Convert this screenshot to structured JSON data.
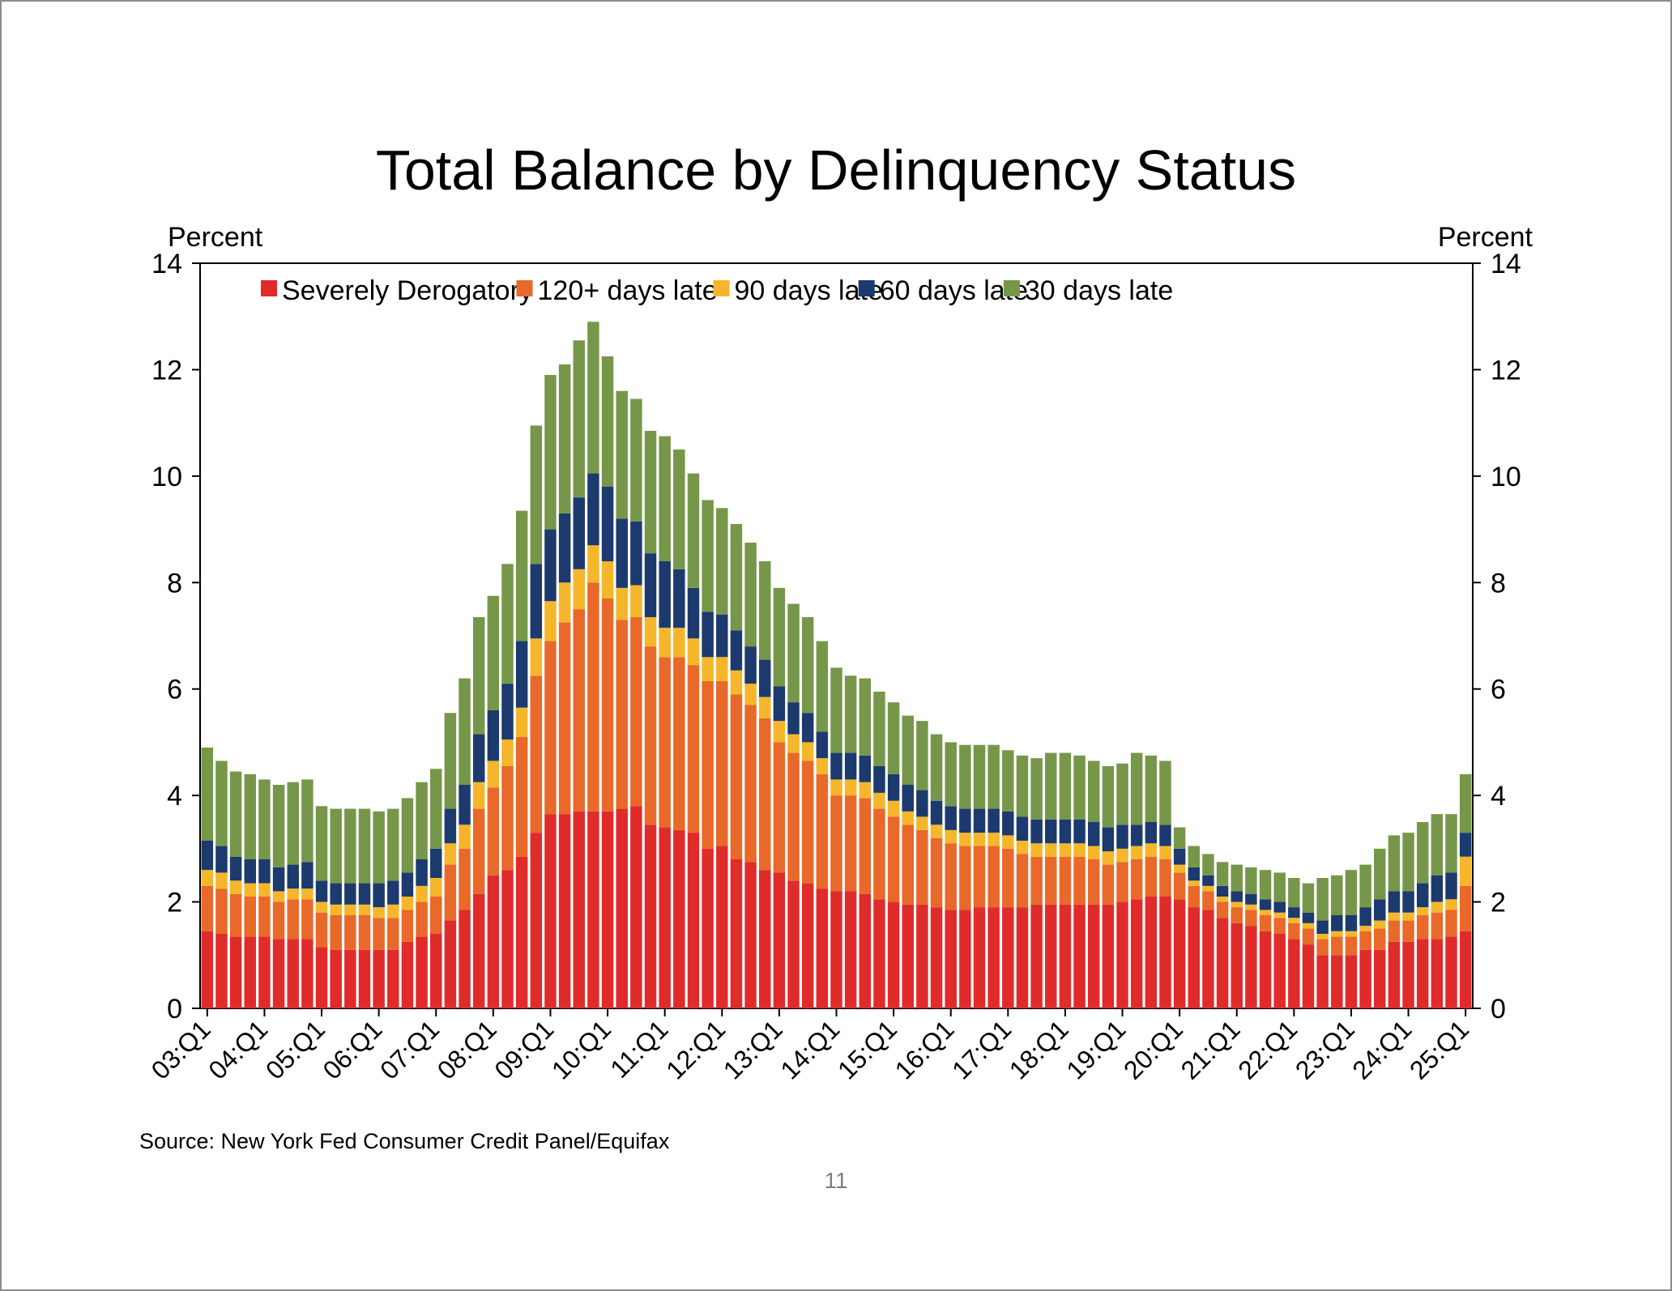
{
  "page_number": "11",
  "chart_data": {
    "type": "bar",
    "stacked": true,
    "title": "Total Balance by Delinquency Status",
    "ylabel_left": "Percent",
    "ylabel_right": "Percent",
    "ylim": [
      0,
      14
    ],
    "yticks": [
      0,
      2,
      4,
      6,
      8,
      10,
      12,
      14
    ],
    "grid": false,
    "legend_position": "top",
    "source": "Source: New York Fed Consumer Credit Panel/Equifax",
    "x_tick_labels": [
      "03:Q1",
      "04:Q1",
      "05:Q1",
      "06:Q1",
      "07:Q1",
      "08:Q1",
      "09:Q1",
      "10:Q1",
      "11:Q1",
      "12:Q1",
      "13:Q1",
      "14:Q1",
      "15:Q1",
      "16:Q1",
      "17:Q1",
      "18:Q1",
      "19:Q1",
      "20:Q1",
      "21:Q1",
      "22:Q1",
      "23:Q1",
      "24:Q1",
      "25:Q1"
    ],
    "x_tick_every": 4,
    "quarters_count": 89,
    "series": [
      {
        "name": "Severely Derogatory",
        "color": "#e02b2b",
        "values": [
          1.45,
          1.4,
          1.35,
          1.35,
          1.35,
          1.3,
          1.3,
          1.3,
          1.15,
          1.1,
          1.1,
          1.1,
          1.1,
          1.1,
          1.25,
          1.35,
          1.4,
          1.65,
          1.85,
          2.15,
          2.5,
          2.6,
          2.85,
          3.3,
          3.65,
          3.65,
          3.7,
          3.7,
          3.7,
          3.75,
          3.8,
          3.45,
          3.4,
          3.35,
          3.3,
          3.0,
          3.05,
          2.8,
          2.75,
          2.6,
          2.55,
          2.4,
          2.35,
          2.25,
          2.2,
          2.2,
          2.15,
          2.05,
          2.0,
          1.95,
          1.95,
          1.9,
          1.85,
          1.85,
          1.9,
          1.9,
          1.9,
          1.9,
          1.95,
          1.95,
          1.95,
          1.95,
          1.95,
          1.95,
          2.0,
          2.05,
          2.1,
          2.1,
          2.05,
          1.9,
          1.85,
          1.7,
          1.6,
          1.55,
          1.45,
          1.4,
          1.3,
          1.2,
          1.0,
          1.0,
          1.0,
          1.1,
          1.1,
          1.25,
          1.25,
          1.3,
          1.3,
          1.35,
          1.45
        ]
      },
      {
        "name": "120+ days late",
        "color": "#e8692a",
        "values": [
          0.85,
          0.85,
          0.8,
          0.75,
          0.75,
          0.7,
          0.75,
          0.75,
          0.65,
          0.65,
          0.65,
          0.65,
          0.6,
          0.6,
          0.6,
          0.65,
          0.7,
          1.05,
          1.15,
          1.6,
          1.65,
          1.95,
          2.25,
          2.95,
          3.25,
          3.6,
          3.8,
          4.3,
          4.0,
          3.55,
          3.55,
          3.35,
          3.2,
          3.25,
          3.15,
          3.15,
          3.1,
          3.1,
          2.95,
          2.85,
          2.45,
          2.4,
          2.3,
          2.15,
          1.8,
          1.8,
          1.8,
          1.7,
          1.6,
          1.5,
          1.4,
          1.3,
          1.25,
          1.2,
          1.15,
          1.15,
          1.1,
          1.0,
          0.9,
          0.9,
          0.9,
          0.9,
          0.85,
          0.75,
          0.75,
          0.75,
          0.75,
          0.7,
          0.5,
          0.4,
          0.35,
          0.3,
          0.3,
          0.3,
          0.3,
          0.3,
          0.3,
          0.3,
          0.3,
          0.35,
          0.35,
          0.35,
          0.4,
          0.4,
          0.4,
          0.45,
          0.5,
          0.5,
          0.85
        ]
      },
      {
        "name": "90 days late",
        "color": "#f6b62b",
        "values": [
          0.3,
          0.3,
          0.25,
          0.25,
          0.25,
          0.2,
          0.2,
          0.2,
          0.2,
          0.2,
          0.2,
          0.2,
          0.2,
          0.25,
          0.25,
          0.3,
          0.35,
          0.4,
          0.45,
          0.5,
          0.5,
          0.5,
          0.55,
          0.7,
          0.75,
          0.75,
          0.75,
          0.7,
          0.7,
          0.6,
          0.6,
          0.55,
          0.55,
          0.55,
          0.5,
          0.45,
          0.45,
          0.45,
          0.4,
          0.4,
          0.4,
          0.35,
          0.35,
          0.3,
          0.3,
          0.3,
          0.3,
          0.3,
          0.3,
          0.25,
          0.25,
          0.25,
          0.25,
          0.25,
          0.25,
          0.25,
          0.25,
          0.25,
          0.25,
          0.25,
          0.25,
          0.25,
          0.25,
          0.25,
          0.25,
          0.25,
          0.25,
          0.25,
          0.15,
          0.1,
          0.1,
          0.1,
          0.1,
          0.1,
          0.1,
          0.1,
          0.1,
          0.1,
          0.1,
          0.1,
          0.1,
          0.1,
          0.15,
          0.15,
          0.15,
          0.15,
          0.2,
          0.2,
          0.55
        ]
      },
      {
        "name": "60 days late",
        "color": "#1c3a6e",
        "values": [
          0.55,
          0.5,
          0.45,
          0.45,
          0.45,
          0.45,
          0.45,
          0.5,
          0.4,
          0.4,
          0.4,
          0.4,
          0.45,
          0.45,
          0.45,
          0.5,
          0.55,
          0.65,
          0.75,
          0.9,
          0.95,
          1.05,
          1.25,
          1.4,
          1.35,
          1.3,
          1.35,
          1.35,
          1.4,
          1.3,
          1.2,
          1.2,
          1.25,
          1.1,
          0.95,
          0.85,
          0.8,
          0.75,
          0.7,
          0.7,
          0.65,
          0.6,
          0.55,
          0.5,
          0.5,
          0.5,
          0.5,
          0.5,
          0.5,
          0.5,
          0.5,
          0.45,
          0.45,
          0.45,
          0.45,
          0.45,
          0.45,
          0.45,
          0.45,
          0.45,
          0.45,
          0.45,
          0.45,
          0.45,
          0.45,
          0.4,
          0.4,
          0.4,
          0.3,
          0.25,
          0.2,
          0.2,
          0.2,
          0.2,
          0.2,
          0.2,
          0.2,
          0.2,
          0.25,
          0.3,
          0.3,
          0.35,
          0.4,
          0.4,
          0.4,
          0.45,
          0.5,
          0.5,
          0.45
        ]
      },
      {
        "name": "30 days late",
        "color": "#76974a",
        "values": [
          1.75,
          1.6,
          1.6,
          1.6,
          1.5,
          1.55,
          1.55,
          1.55,
          1.4,
          1.4,
          1.4,
          1.4,
          1.35,
          1.35,
          1.4,
          1.45,
          1.5,
          1.8,
          2.0,
          2.2,
          2.15,
          2.25,
          2.45,
          2.6,
          2.9,
          2.8,
          2.95,
          2.85,
          2.45,
          2.4,
          2.3,
          2.3,
          2.35,
          2.25,
          2.15,
          2.1,
          2.0,
          2.0,
          1.95,
          1.85,
          1.85,
          1.85,
          1.8,
          1.7,
          1.6,
          1.45,
          1.45,
          1.4,
          1.35,
          1.3,
          1.3,
          1.25,
          1.2,
          1.2,
          1.2,
          1.2,
          1.15,
          1.15,
          1.15,
          1.25,
          1.25,
          1.2,
          1.15,
          1.15,
          1.15,
          1.35,
          1.25,
          1.2,
          0.4,
          0.4,
          0.4,
          0.45,
          0.5,
          0.5,
          0.55,
          0.55,
          0.55,
          0.55,
          0.8,
          0.75,
          0.85,
          0.8,
          0.95,
          1.05,
          1.1,
          1.15,
          1.15,
          1.1,
          1.1
        ]
      }
    ]
  }
}
